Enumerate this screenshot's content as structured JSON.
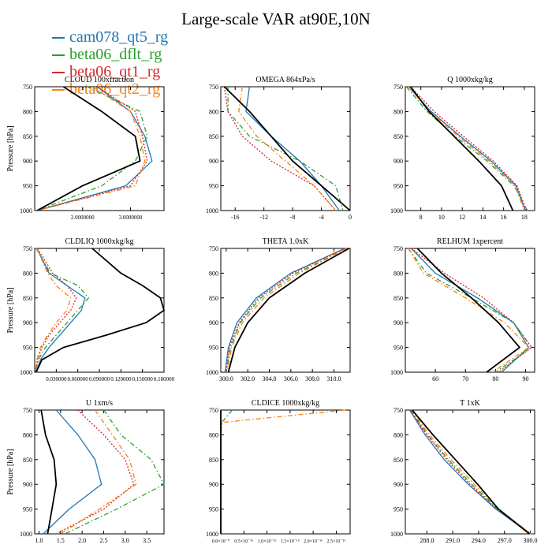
{
  "title": "Large-scale VAR at90E,10N",
  "colors": {
    "cam078_qt5_rg": "#1f77b4",
    "beta06_dflt_rg": "#2ca02c",
    "beta06_qt1_rg": "#d62728",
    "beta06_qt2_rg": "#ff7f0e",
    "reference": "#000000"
  },
  "legend": [
    {
      "label": "cam078_qt5_rg",
      "color": "#1f77b4",
      "dash": "solid"
    },
    {
      "label": "beta06_dflt_rg",
      "color": "#2ca02c",
      "dash": "dashdot"
    },
    {
      "label": "beta06_qt1_rg",
      "color": "#d62728",
      "dash": "dotted"
    },
    {
      "label": "beta06_qt2_rg",
      "color": "#ff7f0e",
      "dash": "dashdot"
    }
  ],
  "chart_data": [
    {
      "type": "line",
      "title": "CLOUD 100xfraction",
      "ylabel": "Pressure [hPa]",
      "ylim": [
        1000,
        750
      ],
      "yticks": [
        750,
        800,
        850,
        900,
        950,
        1000
      ],
      "xlim": [
        1.0,
        3.7
      ],
      "xticks": [
        2.0,
        3.0
      ],
      "xtick_labels": [
        "2.0000000",
        "3.0000000"
      ],
      "pressure": [
        750,
        800,
        850,
        900,
        950,
        1000
      ],
      "series": [
        {
          "name": "cam078_qt5_rg",
          "color": "#1f77b4",
          "dash": "solid",
          "values": [
            2.3,
            3.0,
            3.3,
            3.45,
            2.9,
            1.05
          ]
        },
        {
          "name": "beta06_dflt_rg",
          "color": "#2ca02c",
          "dash": "dashdot",
          "values": [
            2.1,
            3.2,
            3.35,
            3.1,
            2.4,
            1.05
          ]
        },
        {
          "name": "beta06_qt1_rg",
          "color": "#d62728",
          "dash": "dotted",
          "values": [
            2.3,
            3.1,
            3.25,
            3.35,
            3.0,
            1.05
          ]
        },
        {
          "name": "beta06_qt2_rg",
          "color": "#ff7f0e",
          "dash": "dashdot",
          "values": [
            2.2,
            3.0,
            3.2,
            3.3,
            3.1,
            1.05
          ]
        },
        {
          "name": "",
          "color": "#000000",
          "dash": "solid",
          "values": [
            1.6,
            2.4,
            3.1,
            3.2,
            2.0,
            1.05
          ]
        }
      ]
    },
    {
      "type": "line",
      "title": "OMEGA 864xPa/s",
      "ylabel": "",
      "ylim": [
        1000,
        750
      ],
      "yticks": [
        750,
        800,
        850,
        900,
        950,
        1000
      ],
      "xlim": [
        -18,
        0
      ],
      "xticks": [
        -16,
        -12,
        -8,
        -4,
        0
      ],
      "xtick_labels": [
        "-16",
        "-12",
        "-8",
        "-4",
        "0"
      ],
      "pressure": [
        750,
        800,
        850,
        900,
        950,
        1000
      ],
      "series": [
        {
          "name": "cam078_qt5_rg",
          "color": "#1f77b4",
          "dash": "solid",
          "values": [
            -14.0,
            -14.5,
            -11.0,
            -7.0,
            -4.0,
            -1.5
          ]
        },
        {
          "name": "beta06_dflt_rg",
          "color": "#2ca02c",
          "dash": "dashdot",
          "values": [
            -17.0,
            -17.0,
            -14.0,
            -7.0,
            -2.0,
            -1.0
          ]
        },
        {
          "name": "beta06_qt1_rg",
          "color": "#d62728",
          "dash": "dotted",
          "values": [
            -17.5,
            -17.0,
            -15.0,
            -11.0,
            -5.0,
            -2.0
          ]
        },
        {
          "name": "beta06_qt2_rg",
          "color": "#ff7f0e",
          "dash": "dashdot",
          "values": [
            -15.0,
            -15.5,
            -13.0,
            -9.0,
            -5.0,
            -2.0
          ]
        },
        {
          "name": "",
          "color": "#000000",
          "dash": "solid",
          "values": [
            -17.5,
            -14.0,
            -11.0,
            -8.0,
            -4.0,
            0.0
          ]
        }
      ]
    },
    {
      "type": "line",
      "title": "Q 1000xkg/kg",
      "ylabel": "",
      "ylim": [
        1000,
        750
      ],
      "yticks": [
        750,
        800,
        850,
        900,
        950,
        1000
      ],
      "xlim": [
        6.5,
        19.0
      ],
      "xticks": [
        8,
        10,
        12,
        14,
        16,
        18
      ],
      "xtick_labels": [
        "8",
        "10",
        "12",
        "14",
        "16",
        "18"
      ],
      "pressure": [
        750,
        800,
        850,
        900,
        950,
        1000
      ],
      "series": [
        {
          "name": "cam078_qt5_rg",
          "color": "#1f77b4",
          "dash": "solid",
          "values": [
            6.8,
            9.0,
            11.8,
            14.8,
            17.2,
            18.1
          ]
        },
        {
          "name": "beta06_dflt_rg",
          "color": "#2ca02c",
          "dash": "dashdot",
          "values": [
            6.6,
            8.6,
            11.3,
            14.4,
            17.0,
            18.3
          ]
        },
        {
          "name": "beta06_qt1_rg",
          "color": "#d62728",
          "dash": "dotted",
          "values": [
            7.0,
            9.3,
            12.1,
            15.0,
            17.3,
            18.2
          ]
        },
        {
          "name": "beta06_qt2_rg",
          "color": "#ff7f0e",
          "dash": "dashdot",
          "values": [
            6.8,
            8.9,
            11.6,
            14.6,
            17.1,
            18.0
          ]
        },
        {
          "name": "",
          "color": "#000000",
          "dash": "solid",
          "values": [
            7.0,
            8.8,
            11.2,
            13.6,
            15.8,
            16.9
          ]
        }
      ]
    },
    {
      "type": "line",
      "title": "CLDLIQ 1000xkg/kg",
      "ylabel": "Pressure [hPa]",
      "ylim": [
        1000,
        750
      ],
      "yticks": [
        750,
        800,
        850,
        900,
        950,
        1000
      ],
      "xlim": [
        0.0,
        0.18
      ],
      "xticks": [
        0.03,
        0.06,
        0.09,
        0.12,
        0.15,
        0.18
      ],
      "xtick_labels": [
        "0.030000",
        "0.060000",
        "0.090000",
        "0.120000",
        "0.150000",
        "0.180000"
      ],
      "pressure": [
        750,
        800,
        825,
        850,
        875,
        900,
        925,
        950,
        975,
        1000
      ],
      "series": [
        {
          "name": "cam078_qt5_rg",
          "color": "#1f77b4",
          "dash": "solid",
          "values": [
            0.003,
            0.02,
            0.045,
            0.07,
            0.065,
            0.05,
            0.035,
            0.02,
            0.008,
            0.002
          ]
        },
        {
          "name": "beta06_dflt_rg",
          "color": "#2ca02c",
          "dash": "dashdot",
          "values": [
            0.002,
            0.022,
            0.06,
            0.075,
            0.06,
            0.045,
            0.03,
            0.015,
            0.005,
            0.001
          ]
        },
        {
          "name": "beta06_qt1_rg",
          "color": "#d62728",
          "dash": "dotted",
          "values": [
            0.004,
            0.025,
            0.045,
            0.058,
            0.05,
            0.035,
            0.02,
            0.01,
            0.004,
            0.001
          ]
        },
        {
          "name": "beta06_qt2_rg",
          "color": "#ff7f0e",
          "dash": "dashdot",
          "values": [
            0.003,
            0.018,
            0.03,
            0.05,
            0.045,
            0.03,
            0.018,
            0.008,
            0.003,
            0.001
          ]
        },
        {
          "name": "",
          "color": "#000000",
          "dash": "solid",
          "values": [
            0.08,
            0.12,
            0.15,
            0.175,
            0.18,
            0.155,
            0.1,
            0.04,
            0.01,
            0.002
          ]
        }
      ]
    },
    {
      "type": "line",
      "title": "THETA 1.0xK",
      "ylabel": "",
      "ylim": [
        1000,
        750
      ],
      "yticks": [
        750,
        800,
        850,
        900,
        950,
        1000
      ],
      "xlim": [
        299.5,
        311.5
      ],
      "xticks": [
        300.0,
        302.0,
        304.0,
        306.0,
        308.0,
        310.0
      ],
      "xtick_labels": [
        "300.0",
        "302.0",
        "304.0",
        "306.0",
        "308.0",
        "310.0"
      ],
      "pressure": [
        750,
        800,
        850,
        900,
        950,
        1000
      ],
      "series": [
        {
          "name": "cam078_qt5_rg",
          "color": "#1f77b4",
          "dash": "solid",
          "values": [
            311.0,
            306.0,
            302.8,
            301.0,
            300.2,
            299.9
          ]
        },
        {
          "name": "beta06_dflt_rg",
          "color": "#2ca02c",
          "dash": "dashdot",
          "values": [
            311.2,
            306.5,
            303.2,
            301.3,
            300.4,
            300.0
          ]
        },
        {
          "name": "beta06_qt1_rg",
          "color": "#d62728",
          "dash": "dotted",
          "values": [
            311.0,
            306.2,
            303.0,
            301.2,
            300.3,
            300.0
          ]
        },
        {
          "name": "beta06_qt2_rg",
          "color": "#ff7f0e",
          "dash": "dashdot",
          "values": [
            311.2,
            306.8,
            303.5,
            301.5,
            300.5,
            300.1
          ]
        },
        {
          "name": "",
          "color": "#000000",
          "dash": "solid",
          "values": [
            311.4,
            307.3,
            304.0,
            302.0,
            300.8,
            300.2
          ]
        }
      ]
    },
    {
      "type": "line",
      "title": "RELHUM 1xpercent",
      "ylabel": "",
      "ylim": [
        1000,
        750
      ],
      "yticks": [
        750,
        800,
        850,
        900,
        950,
        1000
      ],
      "xlim": [
        50,
        93
      ],
      "xticks": [
        60,
        70,
        80,
        90
      ],
      "xtick_labels": [
        "60",
        "70",
        "80",
        "90"
      ],
      "pressure": [
        750,
        800,
        850,
        900,
        950,
        1000
      ],
      "series": [
        {
          "name": "cam078_qt5_rg",
          "color": "#1f77b4",
          "dash": "solid",
          "values": [
            52,
            60,
            74,
            86,
            91,
            82
          ]
        },
        {
          "name": "beta06_dflt_rg",
          "color": "#2ca02c",
          "dash": "dashdot",
          "values": [
            51,
            57,
            72,
            86,
            92,
            80
          ]
        },
        {
          "name": "beta06_qt1_rg",
          "color": "#d62728",
          "dash": "dotted",
          "values": [
            52,
            63,
            76,
            86,
            92,
            81
          ]
        },
        {
          "name": "beta06_qt2_rg",
          "color": "#ff7f0e",
          "dash": "dashdot",
          "values": [
            51,
            56,
            70,
            83,
            91,
            79
          ]
        },
        {
          "name": "",
          "color": "#000000",
          "dash": "solid",
          "values": [
            54,
            62,
            72,
            81,
            88,
            77
          ]
        }
      ]
    },
    {
      "type": "line",
      "title": "U 1xm/s",
      "ylabel": "Pressure [hPa]",
      "ylim": [
        1000,
        750
      ],
      "yticks": [
        750,
        800,
        850,
        900,
        950,
        1000
      ],
      "xlim": [
        0.9,
        3.9
      ],
      "xticks": [
        1.0,
        1.5,
        2.0,
        2.5,
        3.0,
        3.5
      ],
      "xtick_labels": [
        "1.0",
        "1.5",
        "2.0",
        "2.5",
        "3.0",
        "3.5"
      ],
      "pressure": [
        750,
        800,
        850,
        900,
        950,
        1000
      ],
      "series": [
        {
          "name": "cam078_qt5_rg",
          "color": "#1f77b4",
          "dash": "solid",
          "values": [
            1.4,
            1.9,
            2.3,
            2.45,
            1.7,
            1.1
          ]
        },
        {
          "name": "beta06_dflt_rg",
          "color": "#2ca02c",
          "dash": "dashdot",
          "values": [
            2.5,
            2.9,
            3.6,
            3.9,
            2.8,
            1.6
          ]
        },
        {
          "name": "beta06_qt1_rg",
          "color": "#d62728",
          "dash": "dotted",
          "values": [
            1.9,
            2.5,
            3.0,
            3.2,
            2.5,
            1.4
          ]
        },
        {
          "name": "beta06_qt2_rg",
          "color": "#ff7f0e",
          "dash": "dashdot",
          "values": [
            2.3,
            2.7,
            3.1,
            3.25,
            2.4,
            1.5
          ]
        },
        {
          "name": "",
          "color": "#000000",
          "dash": "solid",
          "values": [
            1.05,
            1.15,
            1.35,
            1.4,
            1.3,
            1.2
          ]
        }
      ]
    },
    {
      "type": "line",
      "title": "CLDICE 1000xkg/kg",
      "ylabel": "",
      "ylim": [
        1000,
        750
      ],
      "yticks": [
        750,
        800,
        850,
        900,
        950,
        1000
      ],
      "xlim": [
        0.0,
        2.8e-16
      ],
      "xticks": [
        0.0,
        5e-17,
        1e-16,
        1.5e-16,
        2e-16,
        2.5e-16
      ],
      "xtick_labels": [
        "0.0×10⁻⁰",
        "0.5×10⁻¹⁶",
        "1.0×10⁻¹⁶",
        "1.5×10⁻¹⁶",
        "2.0×10⁻¹⁶",
        "2.5×10⁻¹⁶"
      ],
      "pressure": [
        750,
        775,
        800,
        850,
        900,
        950,
        1000
      ],
      "series": [
        {
          "name": "cam078_qt5_rg",
          "color": "#1f77b4",
          "dash": "solid",
          "values": [
            0.0,
            0.0,
            0.0,
            0.0,
            0.0,
            0.0,
            0.0
          ]
        },
        {
          "name": "beta06_dflt_rg",
          "color": "#2ca02c",
          "dash": "dashdot",
          "values": [
            2.5e-17,
            2e-18,
            0.0,
            0.0,
            0.0,
            0.0,
            0.0
          ]
        },
        {
          "name": "beta06_qt1_rg",
          "color": "#d62728",
          "dash": "dotted",
          "values": [
            0.0,
            0.0,
            0.0,
            0.0,
            0.0,
            0.0,
            0.0
          ]
        },
        {
          "name": "beta06_qt2_rg",
          "color": "#ff7f0e",
          "dash": "dashdot",
          "values": [
            2.7e-16,
            3e-18,
            0.0,
            0.0,
            0.0,
            0.0,
            0.0
          ]
        },
        {
          "name": "",
          "color": "#000000",
          "dash": "solid",
          "values": [
            0.0,
            0.0,
            0.0,
            0.0,
            0.0,
            0.0,
            0.0
          ]
        }
      ]
    },
    {
      "type": "line",
      "title": "T 1xK",
      "ylabel": "",
      "ylim": [
        1000,
        750
      ],
      "yticks": [
        750,
        800,
        850,
        900,
        950,
        1000
      ],
      "xlim": [
        285.5,
        300.5
      ],
      "xticks": [
        288.0,
        291.0,
        294.0,
        297.0,
        300.0
      ],
      "xtick_labels": [
        "288.0",
        "291.0",
        "294.0",
        "297.0",
        "300.0"
      ],
      "pressure": [
        750,
        800,
        850,
        900,
        950,
        1000
      ],
      "series": [
        {
          "name": "cam078_qt5_rg",
          "color": "#1f77b4",
          "dash": "solid",
          "values": [
            286.0,
            287.8,
            290.0,
            292.8,
            296.0,
            300.0
          ]
        },
        {
          "name": "beta06_dflt_rg",
          "color": "#2ca02c",
          "dash": "dashdot",
          "values": [
            286.1,
            288.1,
            290.5,
            293.2,
            296.2,
            300.1
          ]
        },
        {
          "name": "beta06_qt1_rg",
          "color": "#d62728",
          "dash": "dotted",
          "values": [
            286.0,
            288.0,
            290.3,
            293.0,
            296.1,
            300.0
          ]
        },
        {
          "name": "beta06_qt2_rg",
          "color": "#ff7f0e",
          "dash": "dashdot",
          "values": [
            286.2,
            288.3,
            290.8,
            293.5,
            296.3,
            300.1
          ]
        },
        {
          "name": "",
          "color": "#000000",
          "dash": "solid",
          "values": [
            286.3,
            288.7,
            291.3,
            293.9,
            296.3,
            299.9
          ]
        }
      ]
    }
  ]
}
